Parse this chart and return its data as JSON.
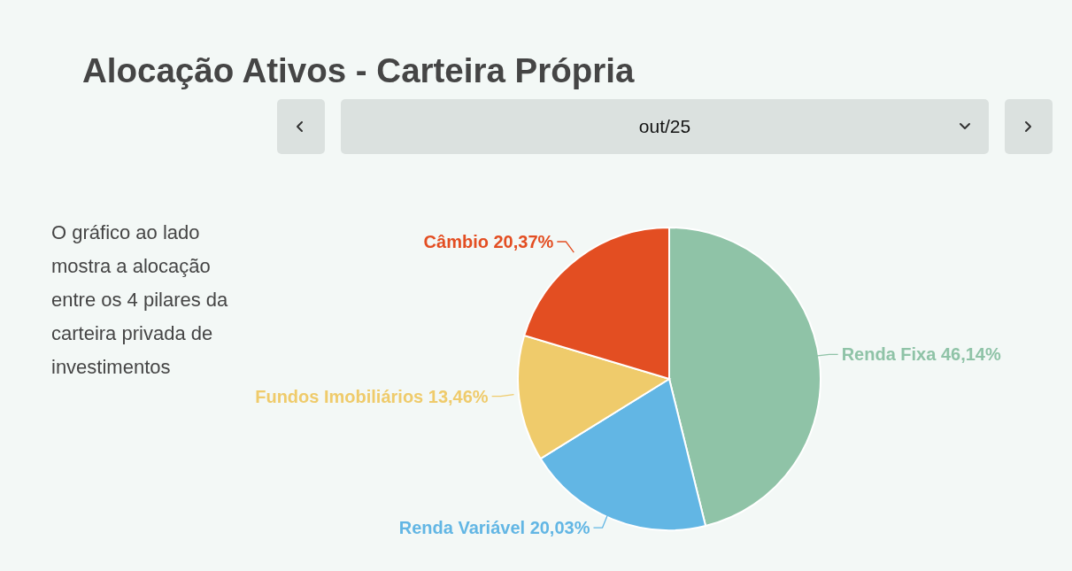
{
  "chart_data": {
    "type": "pie",
    "title": "Alocação Ativos - Carteira Própria",
    "subtitle": "out/25",
    "annotations": [
      "O gráfico ao lado mostra a alocação entre os 4 pilares da carteira privada de investimentos"
    ],
    "categories": [
      "Renda Fixa",
      "Renda Variável",
      "Fundos Imobiliários",
      "Câmbio"
    ],
    "values": [
      46.14,
      20.03,
      13.46,
      20.37
    ],
    "value_labels": [
      "46,14%",
      "20,03%",
      "13,46%",
      "20,37%"
    ],
    "colors": [
      "#8fc3a7",
      "#62b6e4",
      "#efcb6b",
      "#e34e22"
    ]
  }
}
